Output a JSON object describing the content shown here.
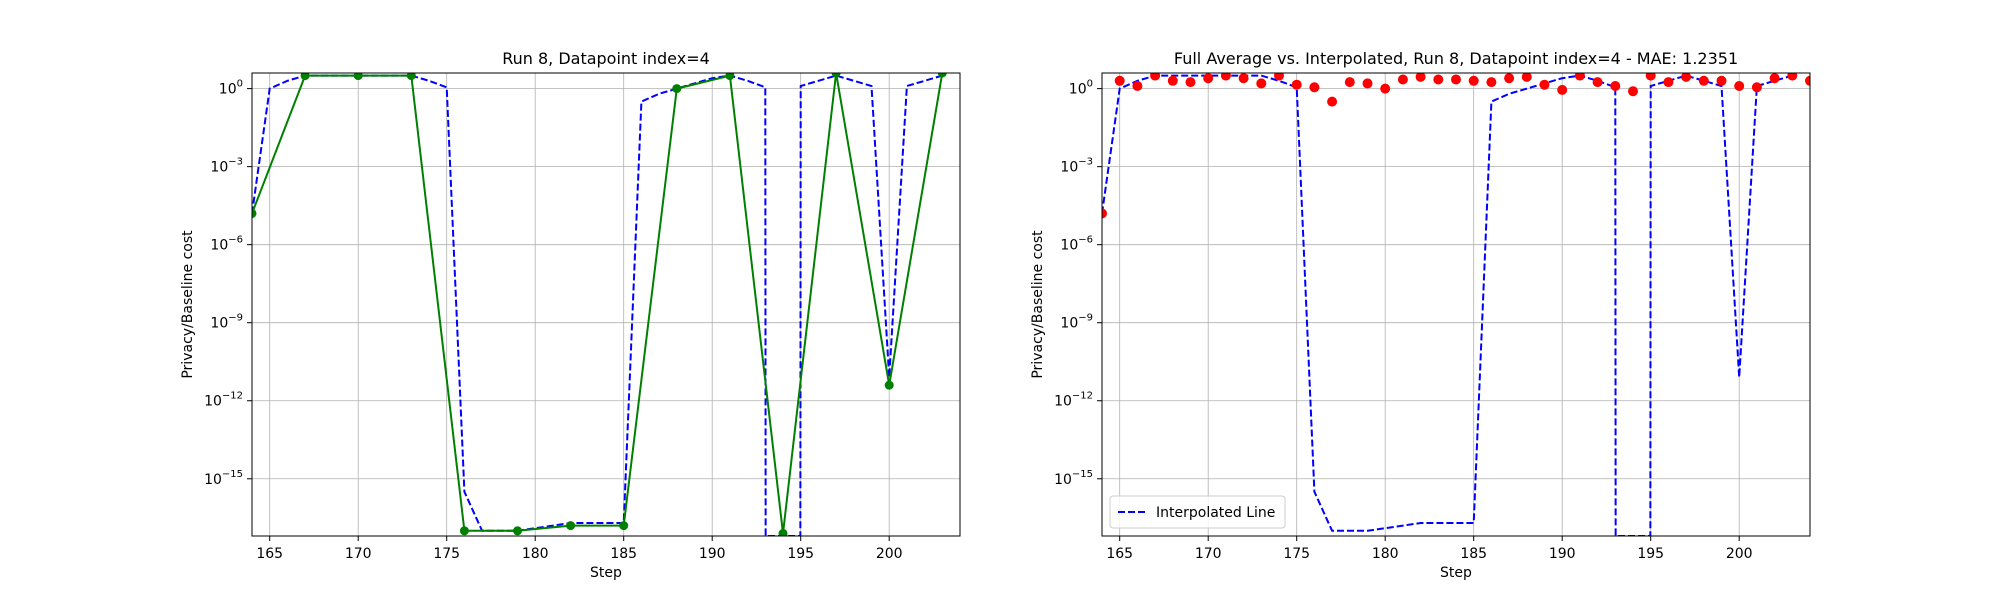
{
  "chart_data": [
    {
      "type": "line",
      "title": "Run 8, Datapoint index=4",
      "xlabel": "Step",
      "ylabel": "Privacy/Baseline cost",
      "xlim": [
        164,
        204
      ],
      "ylim_log10": [
        -17.2,
        0.6
      ],
      "yscale": "log",
      "grid": true,
      "xticks": [
        165,
        170,
        175,
        180,
        185,
        190,
        195,
        200
      ],
      "yticks": [
        {
          "exp": 0,
          "label": "10",
          "sup": "0"
        },
        {
          "exp": -3,
          "label": "10",
          "sup": "−3"
        },
        {
          "exp": -6,
          "label": "10",
          "sup": "−6"
        },
        {
          "exp": -9,
          "label": "10",
          "sup": "−9"
        },
        {
          "exp": -12,
          "label": "10",
          "sup": "−12"
        },
        {
          "exp": -15,
          "label": "10",
          "sup": "−15"
        }
      ],
      "series": [
        {
          "style": "dashed",
          "color": "#0000ff",
          "x": [
            164,
            165,
            166,
            167,
            168,
            169,
            170,
            171,
            172,
            173,
            174,
            175,
            176,
            177,
            178,
            179,
            180,
            181,
            182,
            183,
            184,
            185,
            186,
            187,
            188,
            189,
            190,
            191,
            192,
            193,
            193.02,
            194.98,
            195,
            196,
            197,
            198,
            199,
            200,
            201,
            202,
            203
          ],
          "log10y": [
            -4.8,
            0.0,
            0.3,
            0.5,
            0.5,
            0.5,
            0.5,
            0.5,
            0.5,
            0.5,
            0.3,
            0.05,
            -15.5,
            -17.0,
            -17.0,
            -17.0,
            -16.9,
            -16.8,
            -16.7,
            -16.7,
            -16.7,
            -16.7,
            -0.5,
            -0.2,
            0.0,
            0.2,
            0.4,
            0.5,
            0.3,
            0.05,
            -17.2,
            -17.2,
            0.1,
            0.3,
            0.5,
            0.3,
            0.1,
            -11.1,
            0.1,
            0.3,
            0.5
          ]
        },
        {
          "style": "solid-markers",
          "color": "#008000",
          "x": [
            164,
            167,
            170,
            173,
            176,
            179,
            182,
            185,
            188,
            191,
            194,
            197,
            200,
            203
          ],
          "log10y": [
            -4.8,
            0.5,
            0.5,
            0.5,
            -17.0,
            -17.0,
            -16.8,
            -16.8,
            0.0,
            0.5,
            -17.1,
            0.6,
            -11.4,
            0.6
          ]
        }
      ]
    },
    {
      "type": "scatter",
      "title": "Full Average vs. Interpolated, Run 8, Datapoint index=4 - MAE: 1.2351",
      "xlabel": "Step",
      "ylabel": "Privacy/Baseline cost",
      "xlim": [
        164,
        204
      ],
      "ylim_log10": [
        -17.2,
        0.6
      ],
      "yscale": "log",
      "grid": true,
      "legend_position": "lower-left",
      "xticks": [
        165,
        170,
        175,
        180,
        185,
        190,
        195,
        200
      ],
      "yticks": [
        {
          "exp": 0,
          "label": "10",
          "sup": "0"
        },
        {
          "exp": -3,
          "label": "10",
          "sup": "−3"
        },
        {
          "exp": -6,
          "label": "10",
          "sup": "−6"
        },
        {
          "exp": -9,
          "label": "10",
          "sup": "−9"
        },
        {
          "exp": -12,
          "label": "10",
          "sup": "−12"
        },
        {
          "exp": -15,
          "label": "10",
          "sup": "−15"
        }
      ],
      "series": [
        {
          "style": "dashed",
          "color": "#0000ff",
          "name": "Interpolated Line",
          "x": [
            164,
            165,
            166,
            167,
            168,
            169,
            170,
            171,
            172,
            173,
            174,
            175,
            176,
            177,
            178,
            179,
            180,
            181,
            182,
            183,
            184,
            185,
            186,
            187,
            188,
            189,
            190,
            191,
            192,
            193,
            193.02,
            194.98,
            195,
            196,
            197,
            198,
            199,
            200,
            201,
            202,
            203
          ],
          "log10y": [
            -4.8,
            0.0,
            0.3,
            0.5,
            0.5,
            0.5,
            0.5,
            0.5,
            0.5,
            0.5,
            0.3,
            0.05,
            -15.5,
            -17.0,
            -17.0,
            -17.0,
            -16.9,
            -16.8,
            -16.7,
            -16.7,
            -16.7,
            -16.7,
            -0.5,
            -0.2,
            0.0,
            0.2,
            0.4,
            0.5,
            0.3,
            0.05,
            -17.2,
            -17.2,
            0.1,
            0.3,
            0.5,
            0.3,
            0.1,
            -11.1,
            0.1,
            0.3,
            0.5
          ]
        },
        {
          "style": "scatter",
          "color": "#ff0000",
          "x": [
            164,
            165,
            166,
            167,
            168,
            169,
            170,
            171,
            172,
            173,
            174,
            175,
            176,
            177,
            178,
            179,
            180,
            181,
            182,
            183,
            184,
            185,
            186,
            187,
            188,
            189,
            190,
            191,
            192,
            193,
            194,
            195,
            196,
            197,
            198,
            199,
            200,
            201,
            202,
            203,
            204
          ],
          "log10y": [
            -4.8,
            0.3,
            0.1,
            0.5,
            0.3,
            0.25,
            0.4,
            0.5,
            0.4,
            0.2,
            0.5,
            0.15,
            0.05,
            -0.5,
            0.25,
            0.2,
            0.0,
            0.35,
            0.45,
            0.35,
            0.35,
            0.3,
            0.25,
            0.4,
            0.45,
            0.15,
            -0.05,
            0.5,
            0.25,
            0.1,
            -0.1,
            0.5,
            0.25,
            0.45,
            0.3,
            0.3,
            0.1,
            0.05,
            0.4,
            0.5,
            0.3
          ]
        }
      ]
    }
  ]
}
